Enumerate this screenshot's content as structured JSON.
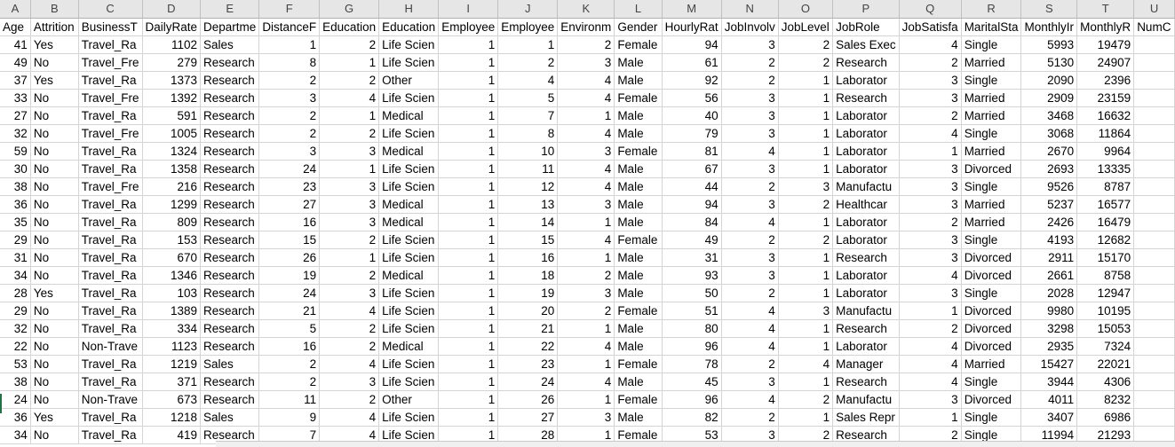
{
  "columns": [
    "A",
    "B",
    "C",
    "D",
    "E",
    "F",
    "G",
    "H",
    "I",
    "J",
    "K",
    "L",
    "M",
    "N",
    "O",
    "P",
    "Q",
    "R",
    "S",
    "T",
    "U"
  ],
  "numeric_cols": [
    0,
    3,
    5,
    6,
    8,
    9,
    10,
    12,
    13,
    14,
    16,
    18,
    19
  ],
  "header_row": [
    "Age",
    "Attrition",
    "BusinessT",
    "DailyRate",
    "Departme",
    "DistanceF",
    "Education",
    "Education",
    "Employee",
    "Employee",
    "Environm",
    "Gender",
    "HourlyRat",
    "JobInvolv",
    "JobLevel",
    "JobRole",
    "JobSatisfa",
    "MaritalSta",
    "MonthlyIr",
    "MonthlyR",
    "NumC"
  ],
  "rows": [
    [
      "41",
      "Yes",
      "Travel_Ra",
      "1102",
      "Sales",
      "1",
      "2",
      "Life Scien",
      "1",
      "1",
      "2",
      "Female",
      "94",
      "3",
      "2",
      "Sales Exec",
      "4",
      "Single",
      "5993",
      "19479",
      ""
    ],
    [
      "49",
      "No",
      "Travel_Fre",
      "279",
      "Research",
      "8",
      "1",
      "Life Scien",
      "1",
      "2",
      "3",
      "Male",
      "61",
      "2",
      "2",
      "Research",
      "2",
      "Married",
      "5130",
      "24907",
      ""
    ],
    [
      "37",
      "Yes",
      "Travel_Ra",
      "1373",
      "Research",
      "2",
      "2",
      "Other",
      "1",
      "4",
      "4",
      "Male",
      "92",
      "2",
      "1",
      "Laborator",
      "3",
      "Single",
      "2090",
      "2396",
      ""
    ],
    [
      "33",
      "No",
      "Travel_Fre",
      "1392",
      "Research",
      "3",
      "4",
      "Life Scien",
      "1",
      "5",
      "4",
      "Female",
      "56",
      "3",
      "1",
      "Research",
      "3",
      "Married",
      "2909",
      "23159",
      ""
    ],
    [
      "27",
      "No",
      "Travel_Ra",
      "591",
      "Research",
      "2",
      "1",
      "Medical",
      "1",
      "7",
      "1",
      "Male",
      "40",
      "3",
      "1",
      "Laborator",
      "2",
      "Married",
      "3468",
      "16632",
      ""
    ],
    [
      "32",
      "No",
      "Travel_Fre",
      "1005",
      "Research",
      "2",
      "2",
      "Life Scien",
      "1",
      "8",
      "4",
      "Male",
      "79",
      "3",
      "1",
      "Laborator",
      "4",
      "Single",
      "3068",
      "11864",
      ""
    ],
    [
      "59",
      "No",
      "Travel_Ra",
      "1324",
      "Research",
      "3",
      "3",
      "Medical",
      "1",
      "10",
      "3",
      "Female",
      "81",
      "4",
      "1",
      "Laborator",
      "1",
      "Married",
      "2670",
      "9964",
      ""
    ],
    [
      "30",
      "No",
      "Travel_Ra",
      "1358",
      "Research",
      "24",
      "1",
      "Life Scien",
      "1",
      "11",
      "4",
      "Male",
      "67",
      "3",
      "1",
      "Laborator",
      "3",
      "Divorced",
      "2693",
      "13335",
      ""
    ],
    [
      "38",
      "No",
      "Travel_Fre",
      "216",
      "Research",
      "23",
      "3",
      "Life Scien",
      "1",
      "12",
      "4",
      "Male",
      "44",
      "2",
      "3",
      "Manufactu",
      "3",
      "Single",
      "9526",
      "8787",
      ""
    ],
    [
      "36",
      "No",
      "Travel_Ra",
      "1299",
      "Research",
      "27",
      "3",
      "Medical",
      "1",
      "13",
      "3",
      "Male",
      "94",
      "3",
      "2",
      "Healthcar",
      "3",
      "Married",
      "5237",
      "16577",
      ""
    ],
    [
      "35",
      "No",
      "Travel_Ra",
      "809",
      "Research",
      "16",
      "3",
      "Medical",
      "1",
      "14",
      "1",
      "Male",
      "84",
      "4",
      "1",
      "Laborator",
      "2",
      "Married",
      "2426",
      "16479",
      ""
    ],
    [
      "29",
      "No",
      "Travel_Ra",
      "153",
      "Research",
      "15",
      "2",
      "Life Scien",
      "1",
      "15",
      "4",
      "Female",
      "49",
      "2",
      "2",
      "Laborator",
      "3",
      "Single",
      "4193",
      "12682",
      ""
    ],
    [
      "31",
      "No",
      "Travel_Ra",
      "670",
      "Research",
      "26",
      "1",
      "Life Scien",
      "1",
      "16",
      "1",
      "Male",
      "31",
      "3",
      "1",
      "Research",
      "3",
      "Divorced",
      "2911",
      "15170",
      ""
    ],
    [
      "34",
      "No",
      "Travel_Ra",
      "1346",
      "Research",
      "19",
      "2",
      "Medical",
      "1",
      "18",
      "2",
      "Male",
      "93",
      "3",
      "1",
      "Laborator",
      "4",
      "Divorced",
      "2661",
      "8758",
      ""
    ],
    [
      "28",
      "Yes",
      "Travel_Ra",
      "103",
      "Research",
      "24",
      "3",
      "Life Scien",
      "1",
      "19",
      "3",
      "Male",
      "50",
      "2",
      "1",
      "Laborator",
      "3",
      "Single",
      "2028",
      "12947",
      ""
    ],
    [
      "29",
      "No",
      "Travel_Ra",
      "1389",
      "Research",
      "21",
      "4",
      "Life Scien",
      "1",
      "20",
      "2",
      "Female",
      "51",
      "4",
      "3",
      "Manufactu",
      "1",
      "Divorced",
      "9980",
      "10195",
      ""
    ],
    [
      "32",
      "No",
      "Travel_Ra",
      "334",
      "Research",
      "5",
      "2",
      "Life Scien",
      "1",
      "21",
      "1",
      "Male",
      "80",
      "4",
      "1",
      "Research",
      "2",
      "Divorced",
      "3298",
      "15053",
      ""
    ],
    [
      "22",
      "No",
      "Non-Trave",
      "1123",
      "Research",
      "16",
      "2",
      "Medical",
      "1",
      "22",
      "4",
      "Male",
      "96",
      "4",
      "1",
      "Laborator",
      "4",
      "Divorced",
      "2935",
      "7324",
      ""
    ],
    [
      "53",
      "No",
      "Travel_Ra",
      "1219",
      "Sales",
      "2",
      "4",
      "Life Scien",
      "1",
      "23",
      "1",
      "Female",
      "78",
      "2",
      "4",
      "Manager",
      "4",
      "Married",
      "15427",
      "22021",
      ""
    ],
    [
      "38",
      "No",
      "Travel_Ra",
      "371",
      "Research",
      "2",
      "3",
      "Life Scien",
      "1",
      "24",
      "4",
      "Male",
      "45",
      "3",
      "1",
      "Research",
      "4",
      "Single",
      "3944",
      "4306",
      ""
    ],
    [
      "24",
      "No",
      "Non-Trave",
      "673",
      "Research",
      "11",
      "2",
      "Other",
      "1",
      "26",
      "1",
      "Female",
      "96",
      "4",
      "2",
      "Manufactu",
      "3",
      "Divorced",
      "4011",
      "8232",
      ""
    ],
    [
      "36",
      "Yes",
      "Travel_Ra",
      "1218",
      "Sales",
      "9",
      "4",
      "Life Scien",
      "1",
      "27",
      "3",
      "Male",
      "82",
      "2",
      "1",
      "Sales Repr",
      "1",
      "Single",
      "3407",
      "6986",
      ""
    ],
    [
      "34",
      "No",
      "Travel_Ra",
      "419",
      "Research",
      "7",
      "4",
      "Life Scien",
      "1",
      "28",
      "1",
      "Female",
      "53",
      "3",
      "2",
      "Research",
      "2",
      "Single",
      "11994",
      "21293",
      ""
    ]
  ]
}
